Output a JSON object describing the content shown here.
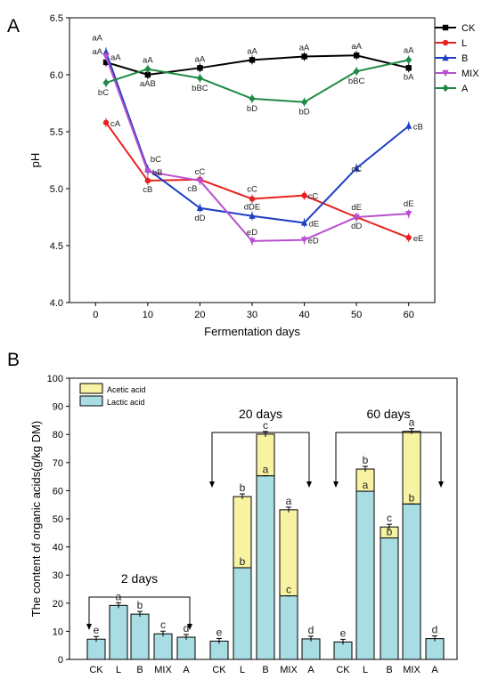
{
  "chart_data": [
    {
      "type": "line",
      "panel": "A",
      "xlabel": "Fermentation days",
      "ylabel": "pH",
      "x": [
        2,
        10,
        20,
        30,
        40,
        50,
        60
      ],
      "xticks": [
        0,
        10,
        20,
        30,
        40,
        50,
        60
      ],
      "yticks": [
        "4.0",
        "4.5",
        "5.0",
        "5.5",
        "6.0",
        "6.5"
      ],
      "xlim": [
        -5,
        65
      ],
      "ylim": [
        4.0,
        6.5
      ],
      "grid": false,
      "legend": "top-right",
      "series": [
        {
          "name": "CK",
          "color": "#000000",
          "marker": "square",
          "values": [
            6.11,
            6.0,
            6.06,
            6.13,
            6.16,
            6.17,
            6.06
          ],
          "labels": [
            "aA",
            "aAB",
            "aA",
            "aA",
            "aA",
            "aA",
            "bA"
          ]
        },
        {
          "name": "L",
          "color": "#e8221f",
          "marker": "circle",
          "values": [
            5.58,
            5.07,
            5.08,
            4.91,
            4.94,
            4.75,
            4.57
          ],
          "labels": [
            "cA",
            "cB",
            "cB",
            "cC",
            "cC",
            "dD",
            "eE"
          ]
        },
        {
          "name": "B",
          "color": "#1f3fc4",
          "marker": "triangle",
          "values": [
            6.2,
            5.17,
            4.83,
            4.76,
            4.7,
            5.18,
            5.55
          ],
          "labels": [
            "aA",
            "bC",
            "dD",
            "dDE",
            "dE",
            "cC",
            "cB"
          ]
        },
        {
          "name": "MIX",
          "color": "#b84fcf",
          "marker": "triangle-down",
          "values": [
            6.16,
            5.15,
            5.07,
            4.54,
            4.55,
            4.75,
            4.78
          ],
          "labels": [
            "aA",
            "bB",
            "cC",
            "eD",
            "eD",
            "dE",
            "dE"
          ]
        },
        {
          "name": "A",
          "color": "#1e8a45",
          "marker": "diamond",
          "values": [
            5.93,
            6.05,
            5.97,
            5.79,
            5.76,
            6.03,
            6.13
          ],
          "labels": [
            "bC",
            "aA",
            "bBC",
            "bD",
            "bD",
            "bBC",
            "aA"
          ]
        }
      ]
    },
    {
      "type": "bar",
      "stacked": true,
      "panel": "B",
      "ylabel": "The content of organic acids(g/kg DM)",
      "ylim": [
        0,
        100
      ],
      "yticks": [
        0,
        10,
        20,
        30,
        40,
        50,
        60,
        70,
        80,
        90,
        100
      ],
      "legend": "top-left",
      "group_titles": [
        "2 days",
        "20 days",
        "60 days"
      ],
      "categories": [
        "CK",
        "L",
        "B",
        "MIX",
        "A",
        "CK",
        "L",
        "B",
        "MIX",
        "A",
        "CK",
        "L",
        "B",
        "MIX",
        "A"
      ],
      "series": [
        {
          "name": "Lactic acid",
          "color": "#a8dde4",
          "values": [
            7.2,
            19.2,
            16.1,
            9.1,
            7.9,
            6.5,
            32.6,
            65.3,
            22.6,
            7.3,
            6.2,
            59.8,
            43.2,
            55.3,
            7.4
          ]
        },
        {
          "name": "Acetic acid",
          "color": "#f8f3a3",
          "values": [
            0,
            0,
            0,
            0,
            0,
            0,
            25.3,
            14.8,
            30.6,
            0,
            0,
            7.9,
            3.9,
            25.8,
            0
          ]
        }
      ],
      "letters_top": [
        "e",
        "a",
        "b",
        "c",
        "d",
        "e",
        "b",
        "c",
        "a",
        "d",
        "e",
        "b",
        "c",
        "a",
        "d"
      ],
      "letters_inner": [
        "",
        "",
        "",
        "",
        "",
        "",
        "b",
        "a",
        "c",
        "",
        "",
        "a",
        "b",
        "b",
        ""
      ]
    }
  ],
  "panel_labels": {
    "a": "A",
    "b": "B"
  }
}
